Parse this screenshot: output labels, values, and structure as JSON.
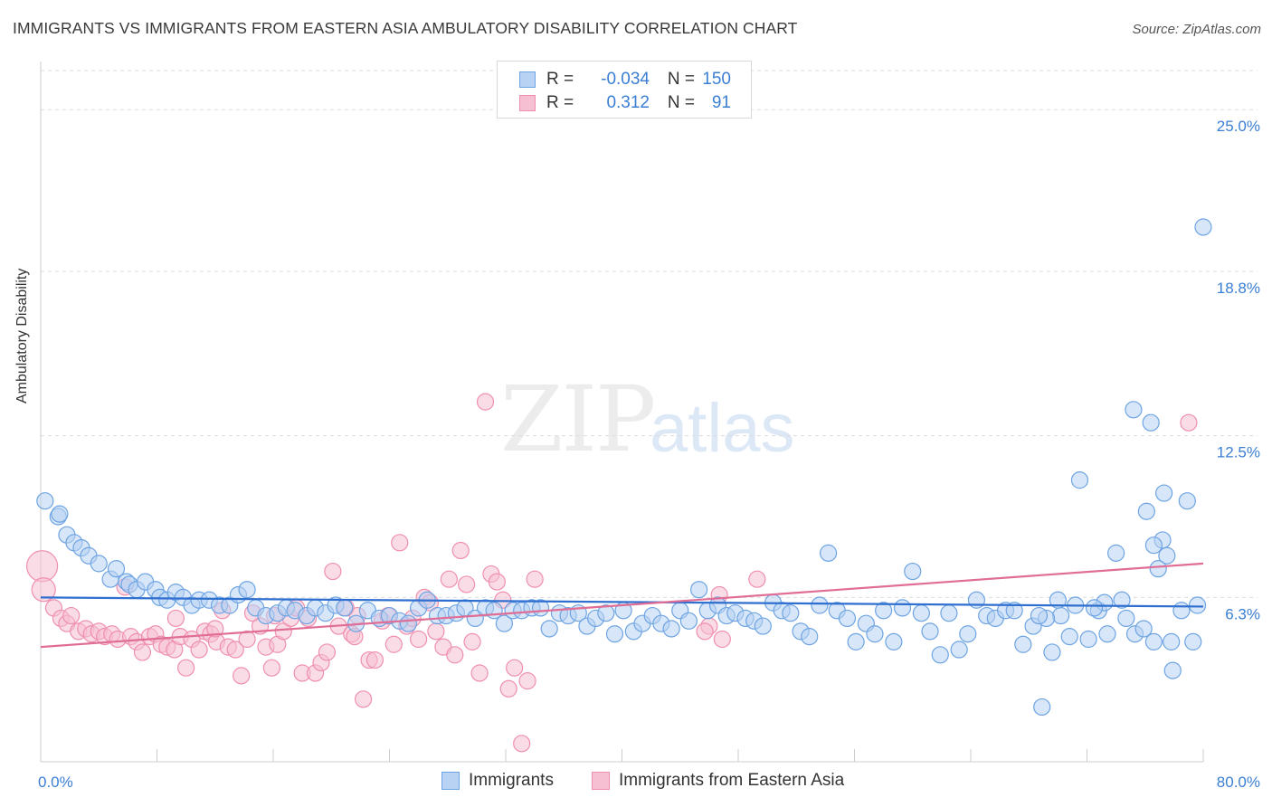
{
  "title": "IMMIGRANTS VS IMMIGRANTS FROM EASTERN ASIA AMBULATORY DISABILITY CORRELATION CHART",
  "source": "Source: ZipAtlas.com",
  "watermark": {
    "zip": "ZIP",
    "atlas": "atlas"
  },
  "colors": {
    "blue": "#6ea4e3",
    "blue_fill": "#b7d2f3",
    "blue_line": "#2f6fcf",
    "pink": "#ef8fb0",
    "pink_fill": "#f6c0d2",
    "pink_line": "#e06d95",
    "tick_label": "#3b7fd4"
  },
  "legend": {
    "rows": [
      {
        "r_label": "R =",
        "r_value": "-0.034",
        "n_label": "N =",
        "n_value": "150"
      },
      {
        "r_label": "R =",
        "r_value": "0.312",
        "n_label": "N =",
        "n_value": "91"
      }
    ]
  },
  "bottom_legend": {
    "immigrants": "Immigrants",
    "eastern_asia": "Immigrants from Eastern Asia"
  },
  "chart_data": {
    "type": "scatter",
    "title": "IMMIGRANTS VS IMMIGRANTS FROM EASTERN ASIA AMBULATORY DISABILITY CORRELATION CHART",
    "ylabel": "Ambulatory Disability",
    "xlabel": "",
    "xlim": [
      0,
      80
    ],
    "ylim": [
      0,
      26.5
    ],
    "x_tick_labels": [
      "0.0%",
      "80.0%"
    ],
    "y_ticks": [
      6.3,
      12.5,
      18.8,
      25.0
    ],
    "y_tick_labels": [
      "6.3%",
      "12.5%",
      "18.8%",
      "25.0%"
    ],
    "grid": "horizontal dashed",
    "legend_position": "top-center",
    "series": [
      {
        "name": "Immigrants",
        "r": -0.034,
        "n": 150,
        "trend": [
          [
            0,
            6.3
          ],
          [
            80,
            5.95
          ]
        ],
        "points": [
          [
            0.3,
            10.0
          ],
          [
            1.2,
            9.4
          ],
          [
            1.3,
            9.5
          ],
          [
            1.8,
            8.7
          ],
          [
            2.3,
            8.4
          ],
          [
            2.8,
            8.2
          ],
          [
            3.3,
            7.9
          ],
          [
            4.0,
            7.6
          ],
          [
            4.8,
            7.0
          ],
          [
            5.2,
            7.4
          ],
          [
            5.9,
            6.9
          ],
          [
            6.1,
            6.8
          ],
          [
            6.6,
            6.6
          ],
          [
            7.2,
            6.9
          ],
          [
            7.9,
            6.6
          ],
          [
            8.2,
            6.3
          ],
          [
            8.7,
            6.2
          ],
          [
            9.3,
            6.5
          ],
          [
            9.8,
            6.3
          ],
          [
            10.4,
            6.0
          ],
          [
            10.9,
            6.2
          ],
          [
            11.6,
            6.2
          ],
          [
            12.3,
            6.0
          ],
          [
            13.0,
            6.0
          ],
          [
            13.6,
            6.4
          ],
          [
            14.2,
            6.6
          ],
          [
            14.8,
            5.9
          ],
          [
            15.5,
            5.6
          ],
          [
            16.3,
            5.7
          ],
          [
            16.9,
            5.9
          ],
          [
            17.5,
            5.8
          ],
          [
            18.3,
            5.6
          ],
          [
            18.9,
            5.9
          ],
          [
            19.6,
            5.7
          ],
          [
            20.3,
            6.0
          ],
          [
            20.9,
            5.9
          ],
          [
            21.7,
            5.3
          ],
          [
            22.5,
            5.8
          ],
          [
            23.3,
            5.5
          ],
          [
            24.0,
            5.6
          ],
          [
            24.7,
            5.4
          ],
          [
            25.3,
            5.3
          ],
          [
            26.0,
            5.9
          ],
          [
            26.6,
            6.2
          ],
          [
            27.3,
            5.6
          ],
          [
            27.9,
            5.6
          ],
          [
            28.6,
            5.7
          ],
          [
            29.2,
            5.9
          ],
          [
            29.9,
            5.5
          ],
          [
            30.6,
            5.9
          ],
          [
            31.2,
            5.8
          ],
          [
            31.9,
            5.3
          ],
          [
            32.5,
            5.8
          ],
          [
            33.1,
            5.8
          ],
          [
            33.8,
            5.9
          ],
          [
            34.4,
            5.9
          ],
          [
            35.0,
            5.1
          ],
          [
            35.7,
            5.7
          ],
          [
            36.3,
            5.6
          ],
          [
            37.0,
            5.7
          ],
          [
            37.6,
            5.2
          ],
          [
            38.2,
            5.5
          ],
          [
            38.9,
            5.7
          ],
          [
            39.5,
            4.9
          ],
          [
            40.1,
            5.8
          ],
          [
            40.8,
            5.0
          ],
          [
            41.4,
            5.3
          ],
          [
            42.1,
            5.6
          ],
          [
            42.7,
            5.3
          ],
          [
            43.4,
            5.1
          ],
          [
            44.0,
            5.8
          ],
          [
            44.6,
            5.4
          ],
          [
            45.3,
            6.6
          ],
          [
            45.9,
            5.8
          ],
          [
            46.6,
            6.0
          ],
          [
            47.2,
            5.6
          ],
          [
            47.8,
            5.7
          ],
          [
            48.5,
            5.5
          ],
          [
            49.1,
            5.4
          ],
          [
            49.7,
            5.2
          ],
          [
            50.4,
            6.1
          ],
          [
            51.0,
            5.8
          ],
          [
            51.6,
            5.7
          ],
          [
            52.3,
            5.0
          ],
          [
            52.9,
            4.8
          ],
          [
            53.6,
            6.0
          ],
          [
            54.2,
            8.0
          ],
          [
            54.8,
            5.8
          ],
          [
            55.5,
            5.5
          ],
          [
            56.1,
            4.6
          ],
          [
            56.8,
            5.3
          ],
          [
            57.4,
            4.9
          ],
          [
            58.0,
            5.8
          ],
          [
            58.7,
            4.6
          ],
          [
            59.3,
            5.9
          ],
          [
            60.0,
            7.3
          ],
          [
            60.6,
            5.7
          ],
          [
            61.2,
            5.0
          ],
          [
            61.9,
            4.1
          ],
          [
            62.5,
            5.7
          ],
          [
            63.2,
            4.3
          ],
          [
            63.8,
            4.9
          ],
          [
            64.4,
            6.2
          ],
          [
            65.1,
            5.6
          ],
          [
            65.7,
            5.5
          ],
          [
            66.4,
            5.8
          ],
          [
            67.0,
            5.8
          ],
          [
            67.6,
            4.5
          ],
          [
            68.3,
            5.2
          ],
          [
            68.9,
            2.1
          ],
          [
            69.6,
            4.2
          ],
          [
            70.2,
            5.6
          ],
          [
            70.8,
            4.8
          ],
          [
            71.5,
            10.8
          ],
          [
            72.1,
            4.7
          ],
          [
            72.8,
            5.8
          ],
          [
            73.4,
            4.9
          ],
          [
            74.0,
            8.0
          ],
          [
            74.7,
            5.5
          ],
          [
            75.3,
            4.9
          ],
          [
            75.9,
            5.1
          ],
          [
            76.6,
            4.6
          ],
          [
            77.2,
            8.5
          ],
          [
            77.9,
            3.5
          ],
          [
            78.5,
            5.8
          ],
          [
            78.9,
            10.0
          ],
          [
            79.3,
            4.6
          ],
          [
            79.6,
            6.0
          ],
          [
            80.0,
            20.5
          ],
          [
            75.2,
            13.5
          ],
          [
            76.4,
            13.0
          ],
          [
            77.3,
            10.3
          ],
          [
            77.8,
            4.6
          ],
          [
            76.1,
            9.6
          ],
          [
            76.6,
            8.3
          ],
          [
            77.5,
            7.9
          ],
          [
            76.9,
            7.4
          ],
          [
            74.4,
            6.2
          ],
          [
            73.2,
            6.1
          ],
          [
            72.5,
            5.9
          ],
          [
            71.2,
            6.0
          ],
          [
            70.0,
            6.2
          ],
          [
            69.2,
            5.5
          ],
          [
            68.7,
            5.6
          ]
        ]
      },
      {
        "name": "Immigrants from Eastern Asia",
        "r": 0.312,
        "n": 91,
        "trend": [
          [
            0,
            4.4
          ],
          [
            80,
            7.6
          ]
        ],
        "points": [
          [
            0.1,
            7.5
          ],
          [
            0.2,
            6.6
          ],
          [
            0.9,
            5.9
          ],
          [
            1.4,
            5.5
          ],
          [
            1.8,
            5.3
          ],
          [
            2.1,
            5.6
          ],
          [
            2.6,
            5.0
          ],
          [
            3.1,
            5.1
          ],
          [
            3.5,
            4.9
          ],
          [
            4.0,
            5.0
          ],
          [
            4.4,
            4.8
          ],
          [
            4.9,
            4.9
          ],
          [
            5.3,
            4.7
          ],
          [
            5.8,
            6.7
          ],
          [
            6.2,
            4.8
          ],
          [
            6.6,
            4.6
          ],
          [
            7.0,
            4.2
          ],
          [
            7.5,
            4.8
          ],
          [
            7.9,
            4.9
          ],
          [
            8.3,
            4.5
          ],
          [
            8.7,
            4.4
          ],
          [
            9.2,
            4.3
          ],
          [
            9.6,
            4.8
          ],
          [
            10.0,
            3.6
          ],
          [
            10.4,
            4.7
          ],
          [
            10.9,
            4.3
          ],
          [
            11.3,
            5.0
          ],
          [
            11.7,
            4.9
          ],
          [
            12.1,
            4.6
          ],
          [
            12.5,
            5.8
          ],
          [
            12.9,
            4.4
          ],
          [
            13.4,
            4.3
          ],
          [
            13.8,
            3.3
          ],
          [
            14.2,
            4.7
          ],
          [
            14.6,
            5.7
          ],
          [
            15.1,
            5.2
          ],
          [
            15.5,
            4.4
          ],
          [
            15.9,
            3.6
          ],
          [
            16.3,
            4.5
          ],
          [
            16.7,
            5.0
          ],
          [
            17.2,
            5.5
          ],
          [
            17.6,
            5.9
          ],
          [
            18.0,
            3.4
          ],
          [
            18.4,
            5.5
          ],
          [
            18.9,
            3.4
          ],
          [
            19.3,
            3.8
          ],
          [
            19.7,
            4.2
          ],
          [
            20.1,
            7.3
          ],
          [
            20.5,
            5.2
          ],
          [
            21.0,
            5.9
          ],
          [
            21.4,
            4.9
          ],
          [
            21.8,
            5.6
          ],
          [
            22.2,
            2.4
          ],
          [
            22.6,
            3.9
          ],
          [
            23.0,
            3.9
          ],
          [
            23.5,
            5.4
          ],
          [
            23.9,
            5.6
          ],
          [
            24.3,
            4.5
          ],
          [
            24.7,
            8.4
          ],
          [
            25.2,
            5.2
          ],
          [
            25.6,
            5.5
          ],
          [
            26.0,
            4.7
          ],
          [
            26.4,
            6.3
          ],
          [
            26.8,
            6.1
          ],
          [
            27.2,
            5.0
          ],
          [
            27.7,
            4.4
          ],
          [
            28.1,
            7.0
          ],
          [
            28.5,
            4.1
          ],
          [
            28.9,
            8.1
          ],
          [
            29.3,
            6.8
          ],
          [
            29.7,
            4.6
          ],
          [
            30.2,
            3.4
          ],
          [
            30.6,
            13.8
          ],
          [
            31.0,
            7.2
          ],
          [
            31.4,
            6.9
          ],
          [
            31.8,
            6.2
          ],
          [
            32.2,
            2.8
          ],
          [
            32.6,
            3.6
          ],
          [
            33.1,
            0.7
          ],
          [
            33.5,
            3.1
          ],
          [
            34.0,
            7.0
          ],
          [
            46.7,
            6.4
          ],
          [
            46.0,
            5.2
          ],
          [
            46.9,
            4.7
          ],
          [
            49.3,
            7.0
          ],
          [
            45.7,
            5.0
          ],
          [
            21.6,
            4.8
          ],
          [
            16.1,
            5.6
          ],
          [
            12.0,
            5.1
          ],
          [
            9.3,
            5.5
          ],
          [
            79.0,
            13.0
          ]
        ]
      }
    ]
  }
}
